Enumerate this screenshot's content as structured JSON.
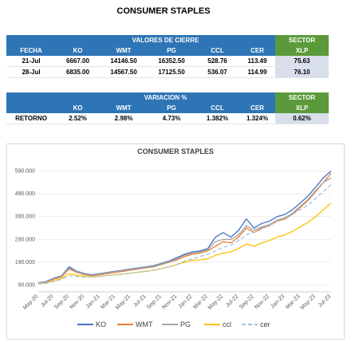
{
  "header": {
    "title": "CONSUMER STAPLES"
  },
  "table1": {
    "group_header": "VALORES DE CIERRE",
    "sector_header": "SECTOR",
    "columns": [
      "FECHA",
      "KO",
      "WMT",
      "PG",
      "CCL",
      "CER",
      "XLP"
    ],
    "rows": [
      [
        "21-Jul",
        "6667.00",
        "14146.50",
        "16352.50",
        "528.76",
        "113.49",
        "75.63"
      ],
      [
        "28-Jul",
        "6835.00",
        "14567.50",
        "17125.50",
        "536.07",
        "114.99",
        "76.10"
      ]
    ]
  },
  "table2": {
    "group_header": "VARIACION %",
    "sector_header": "SECTOR",
    "columns": [
      "KO",
      "WMT",
      "PG",
      "CCL",
      "CER",
      "XLP"
    ],
    "rows": [
      [
        "RETORNO",
        "2.52%",
        "2.98%",
        "4.73%",
        "1.382%",
        "1.324%",
        "0.62%"
      ]
    ]
  },
  "chart_data": {
    "type": "line",
    "title": "CONSUMER STAPLES",
    "categories": [
      "May-20",
      null,
      "Jul-20",
      null,
      "Sep-20",
      null,
      "Nov-20",
      null,
      "Jan-21",
      null,
      "Mar-21",
      null,
      "May-21",
      null,
      "Jul-21",
      null,
      "Sep-21",
      null,
      "Nov-21",
      null,
      "Jan-22",
      null,
      "Mar-22",
      null,
      "May-22",
      null,
      "Jul-22",
      null,
      "Sep-22",
      null,
      "Nov-22",
      null,
      "Jan-23",
      null,
      "Mar-23",
      null,
      "May-23",
      null,
      "Jul-23"
    ],
    "ylim": [
      60000,
      620000
    ],
    "yticks": [
      {
        "value": 90000,
        "label": "90.000"
      },
      {
        "value": 190000,
        "label": "190.000"
      },
      {
        "value": 290000,
        "label": "290.000"
      },
      {
        "value": 390000,
        "label": "390.000"
      },
      {
        "value": 490000,
        "label": "490.000"
      },
      {
        "value": 590000,
        "label": "590.000"
      }
    ],
    "grid": true,
    "legend": "bottom",
    "series": [
      {
        "name": "KO",
        "color": "#4472c4",
        "dashed": false,
        "values": [
          100000,
          105000,
          120000,
          130000,
          170000,
          150000,
          140000,
          135000,
          140000,
          145000,
          150000,
          155000,
          160000,
          165000,
          170000,
          175000,
          185000,
          195000,
          210000,
          225000,
          235000,
          240000,
          250000,
          300000,
          320000,
          300000,
          330000,
          380000,
          340000,
          360000,
          370000,
          390000,
          400000,
          420000,
          450000,
          480000,
          520000,
          560000,
          590000
        ]
      },
      {
        "name": "WMT",
        "color": "#ed7d31",
        "dashed": false,
        "values": [
          100000,
          102000,
          115000,
          125000,
          160000,
          145000,
          135000,
          130000,
          135000,
          140000,
          145000,
          150000,
          155000,
          160000,
          165000,
          170000,
          180000,
          190000,
          200000,
          215000,
          225000,
          230000,
          240000,
          260000,
          280000,
          275000,
          300000,
          340000,
          320000,
          340000,
          350000,
          370000,
          380000,
          400000,
          430000,
          460000,
          500000,
          540000,
          580000
        ]
      },
      {
        "name": "PG",
        "color": "#a5a5a5",
        "dashed": false,
        "values": [
          100000,
          103000,
          118000,
          128000,
          165000,
          148000,
          138000,
          133000,
          138000,
          143000,
          148000,
          153000,
          158000,
          163000,
          168000,
          172000,
          182000,
          192000,
          205000,
          220000,
          230000,
          235000,
          245000,
          280000,
          290000,
          290000,
          310000,
          350000,
          330000,
          345000,
          355000,
          375000,
          385000,
          405000,
          435000,
          465000,
          505000,
          540000,
          560000
        ]
      },
      {
        "name": "ccl",
        "color": "#ffc000",
        "dashed": false,
        "values": [
          95000,
          98000,
          108000,
          118000,
          140000,
          132000,
          128000,
          125000,
          128000,
          132000,
          135000,
          138000,
          142000,
          146000,
          150000,
          155000,
          162000,
          170000,
          180000,
          190000,
          198000,
          200000,
          205000,
          220000,
          230000,
          235000,
          250000,
          270000,
          260000,
          275000,
          285000,
          300000,
          310000,
          325000,
          345000,
          365000,
          390000,
          420000,
          450000
        ]
      },
      {
        "name": "cer",
        "color": "#9dc3e6",
        "dashed": true,
        "values": [
          95000,
          97000,
          105000,
          115000,
          130000,
          128000,
          125000,
          125000,
          128000,
          131000,
          135000,
          138000,
          142000,
          146000,
          150000,
          155000,
          162000,
          170000,
          180000,
          195000,
          205000,
          215000,
          225000,
          240000,
          255000,
          265000,
          285000,
          310000,
          320000,
          335000,
          350000,
          370000,
          385000,
          400000,
          420000,
          440000,
          470000,
          500000,
          530000
        ]
      }
    ]
  }
}
